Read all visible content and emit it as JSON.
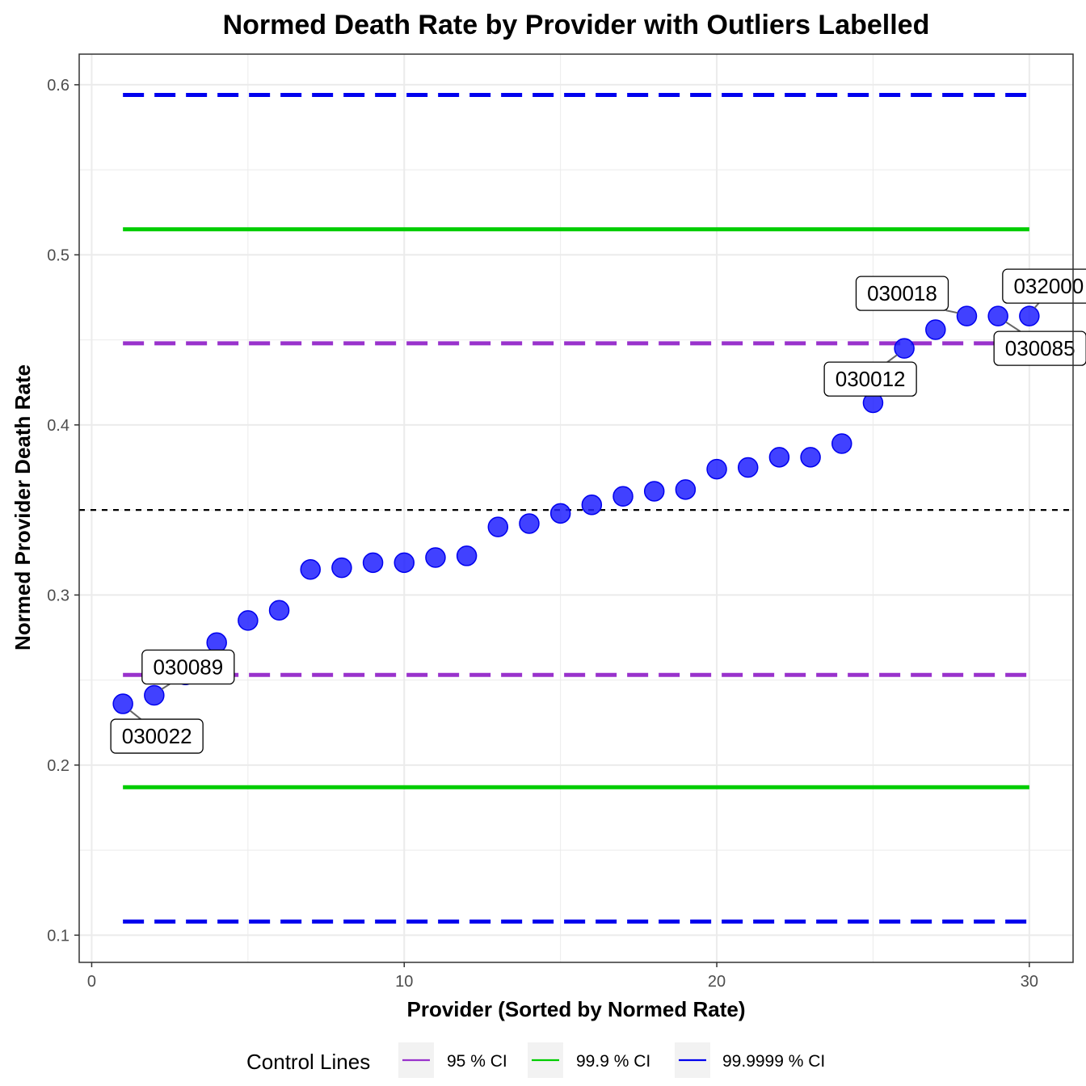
{
  "chart_data": {
    "type": "scatter",
    "title": "Normed Death Rate by Provider with Outliers Labelled",
    "xlabel": "Provider (Sorted by Normed Rate)",
    "ylabel": "Normed Provider Death Rate",
    "xlim": [
      -0.4,
      31.4
    ],
    "ylim": [
      0.084,
      0.618
    ],
    "x_ticks": [
      0,
      10,
      20,
      30
    ],
    "x_tick_labels": [
      "0",
      "10",
      "20",
      "30"
    ],
    "y_ticks": [
      0.1,
      0.2,
      0.3,
      0.4,
      0.5,
      0.6
    ],
    "y_tick_labels": [
      "0.1",
      "0.2",
      "0.3",
      "0.4",
      "0.5",
      "0.6"
    ],
    "grid": true,
    "point_color": "#2020ff",
    "points": [
      {
        "x": 1,
        "y": 0.236,
        "label": "030022"
      },
      {
        "x": 2,
        "y": 0.241,
        "label": "030089"
      },
      {
        "x": 3,
        "y": 0.253
      },
      {
        "x": 4,
        "y": 0.272
      },
      {
        "x": 5,
        "y": 0.285
      },
      {
        "x": 6,
        "y": 0.291
      },
      {
        "x": 7,
        "y": 0.315
      },
      {
        "x": 8,
        "y": 0.316
      },
      {
        "x": 9,
        "y": 0.319
      },
      {
        "x": 10,
        "y": 0.319
      },
      {
        "x": 11,
        "y": 0.322
      },
      {
        "x": 12,
        "y": 0.323
      },
      {
        "x": 13,
        "y": 0.34
      },
      {
        "x": 14,
        "y": 0.342
      },
      {
        "x": 15,
        "y": 0.348
      },
      {
        "x": 16,
        "y": 0.353
      },
      {
        "x": 17,
        "y": 0.358
      },
      {
        "x": 18,
        "y": 0.361
      },
      {
        "x": 19,
        "y": 0.362
      },
      {
        "x": 20,
        "y": 0.374
      },
      {
        "x": 21,
        "y": 0.375
      },
      {
        "x": 22,
        "y": 0.381
      },
      {
        "x": 23,
        "y": 0.381
      },
      {
        "x": 24,
        "y": 0.389
      },
      {
        "x": 25,
        "y": 0.413
      },
      {
        "x": 26,
        "y": 0.445,
        "label": "030012"
      },
      {
        "x": 27,
        "y": 0.456
      },
      {
        "x": 28,
        "y": 0.464,
        "label": "030018"
      },
      {
        "x": 29,
        "y": 0.464,
        "label": "030085"
      },
      {
        "x": 30,
        "y": 0.464,
        "label": "032000"
      }
    ],
    "center_line": {
      "y": 0.35,
      "color": "#000000",
      "style": "dotted"
    },
    "control_lines": [
      {
        "name": "95 % CI",
        "color": "#9932CC",
        "style": "dashed",
        "upper": 0.448,
        "lower": 0.253
      },
      {
        "name": "99.9 % CI",
        "color": "#00CD00",
        "style": "solid",
        "upper": 0.515,
        "lower": 0.187
      },
      {
        "name": "99.9999 % CI",
        "color": "#0000EE",
        "style": "dashed",
        "upper": 0.594,
        "lower": 0.108
      }
    ],
    "legend": {
      "title": "Control Lines",
      "position": "bottom"
    }
  }
}
